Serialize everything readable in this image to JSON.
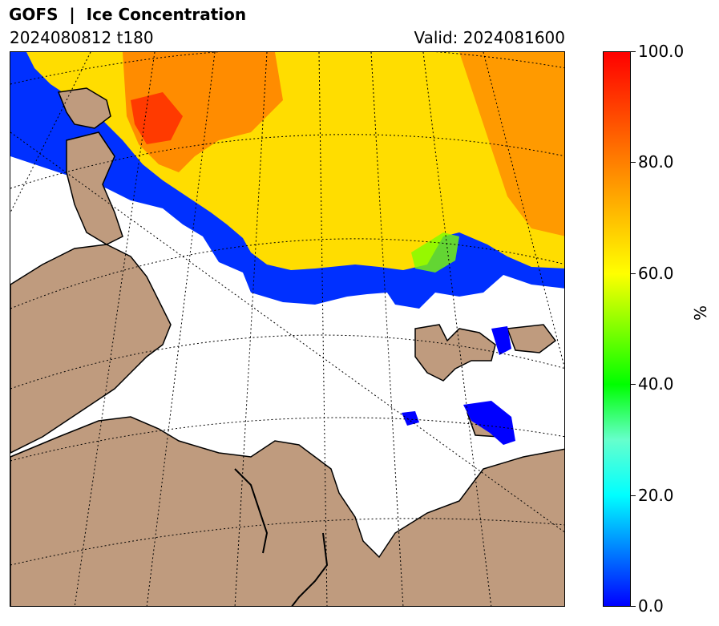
{
  "header": {
    "title": "GOFS  |  Ice Concentration",
    "run": "2024080812 t180",
    "valid": "Valid: 2024081600"
  },
  "colorbar": {
    "label": "%",
    "ticks": [
      "100.0",
      "80.0",
      "60.0",
      "40.0",
      "20.0",
      "0.0"
    ],
    "range": [
      0,
      100
    ],
    "colors": [
      "#0000ff",
      "#0066ff",
      "#00ffff",
      "#00ff00",
      "#ffff00",
      "#ff8000",
      "#ff0000"
    ]
  },
  "map": {
    "land_color": "#bf9b7e",
    "ocean_color": "#ffffff",
    "gridlines": "dotted"
  }
}
